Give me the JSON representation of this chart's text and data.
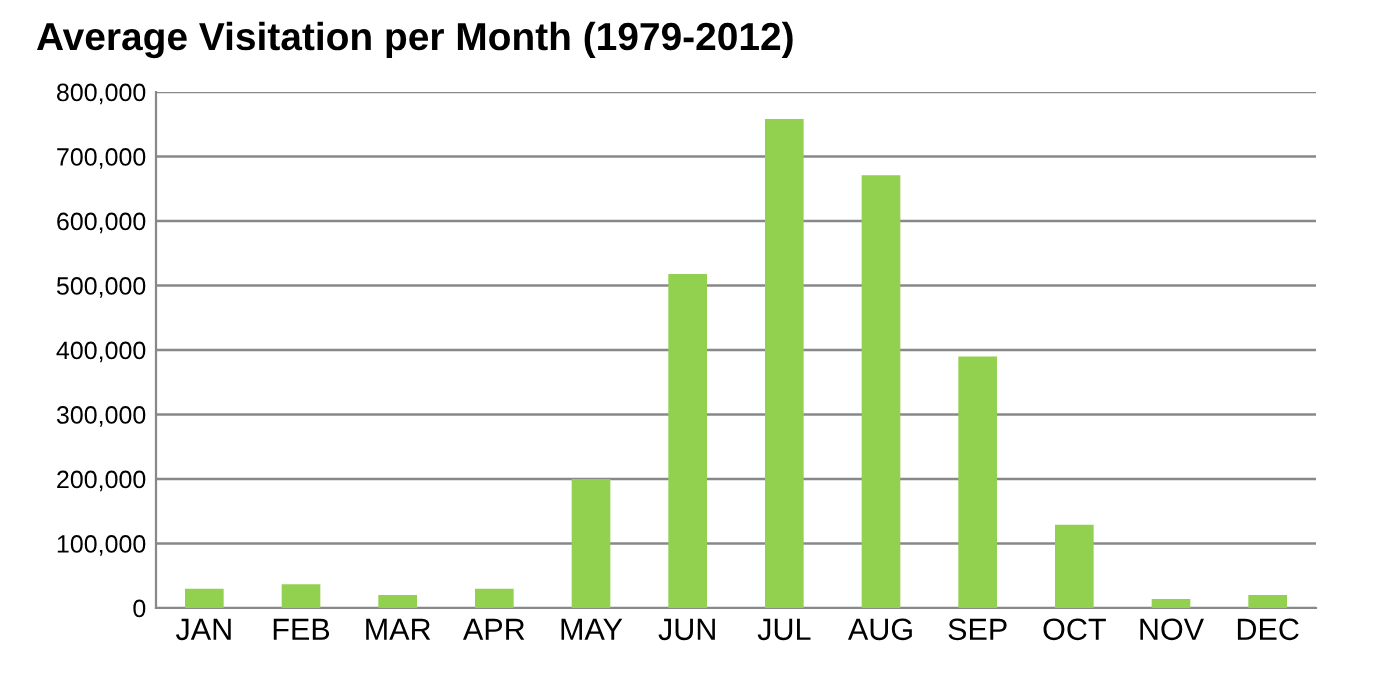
{
  "chart_data": {
    "type": "bar",
    "title": "Average Visitation per Month (1979-2012)",
    "categories": [
      "JAN",
      "FEB",
      "MAR",
      "APR",
      "MAY",
      "JUN",
      "JUL",
      "AUG",
      "SEP",
      "OCT",
      "NOV",
      "DEC"
    ],
    "values": [
      30000,
      37000,
      20000,
      30000,
      200000,
      518000,
      758000,
      671000,
      390000,
      129000,
      14000,
      20000
    ],
    "color": "#92d050",
    "ylim": [
      0,
      800000
    ],
    "yticks": [
      {
        "value": 0,
        "label": "0"
      },
      {
        "value": 100000,
        "label": "100,000"
      },
      {
        "value": 200000,
        "label": "200,000"
      },
      {
        "value": 300000,
        "label": "300,000"
      },
      {
        "value": 400000,
        "label": "400,000"
      },
      {
        "value": 500000,
        "label": "500,000"
      },
      {
        "value": 600000,
        "label": "600,000"
      },
      {
        "value": 700000,
        "label": "700,000"
      },
      {
        "value": 800000,
        "label": "800,000"
      }
    ],
    "grid": "y",
    "legend": false
  }
}
